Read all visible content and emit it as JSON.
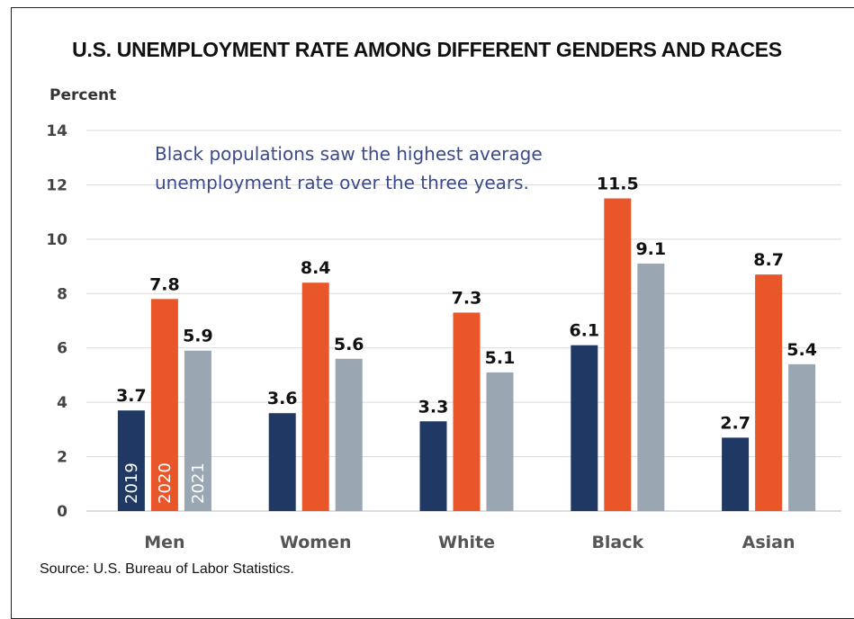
{
  "chart_data": {
    "type": "bar",
    "title": "U.S. UNEMPLOYMENT RATE AMONG DIFFERENT GENDERS AND RACES",
    "ylabel": "Percent",
    "xlabel": "",
    "ylim": [
      0,
      14
    ],
    "yticks": [
      0,
      2,
      4,
      6,
      8,
      10,
      12,
      14
    ],
    "grid": true,
    "categories": [
      "Men",
      "Women",
      "White",
      "Black",
      "Asian"
    ],
    "series": [
      {
        "name": "2019",
        "color": "#203864",
        "values": [
          3.7,
          3.6,
          3.3,
          6.1,
          2.7
        ]
      },
      {
        "name": "2020",
        "color": "#e8562a",
        "values": [
          7.8,
          8.4,
          7.3,
          11.5,
          8.7
        ]
      },
      {
        "name": "2021",
        "color": "#9aa6b2",
        "values": [
          5.9,
          5.6,
          5.1,
          9.1,
          5.4
        ]
      }
    ],
    "annotation": [
      "Black populations saw the highest average",
      "unemployment rate over the three years."
    ],
    "source": "Source: U.S. Bureau of Labor Statistics."
  }
}
